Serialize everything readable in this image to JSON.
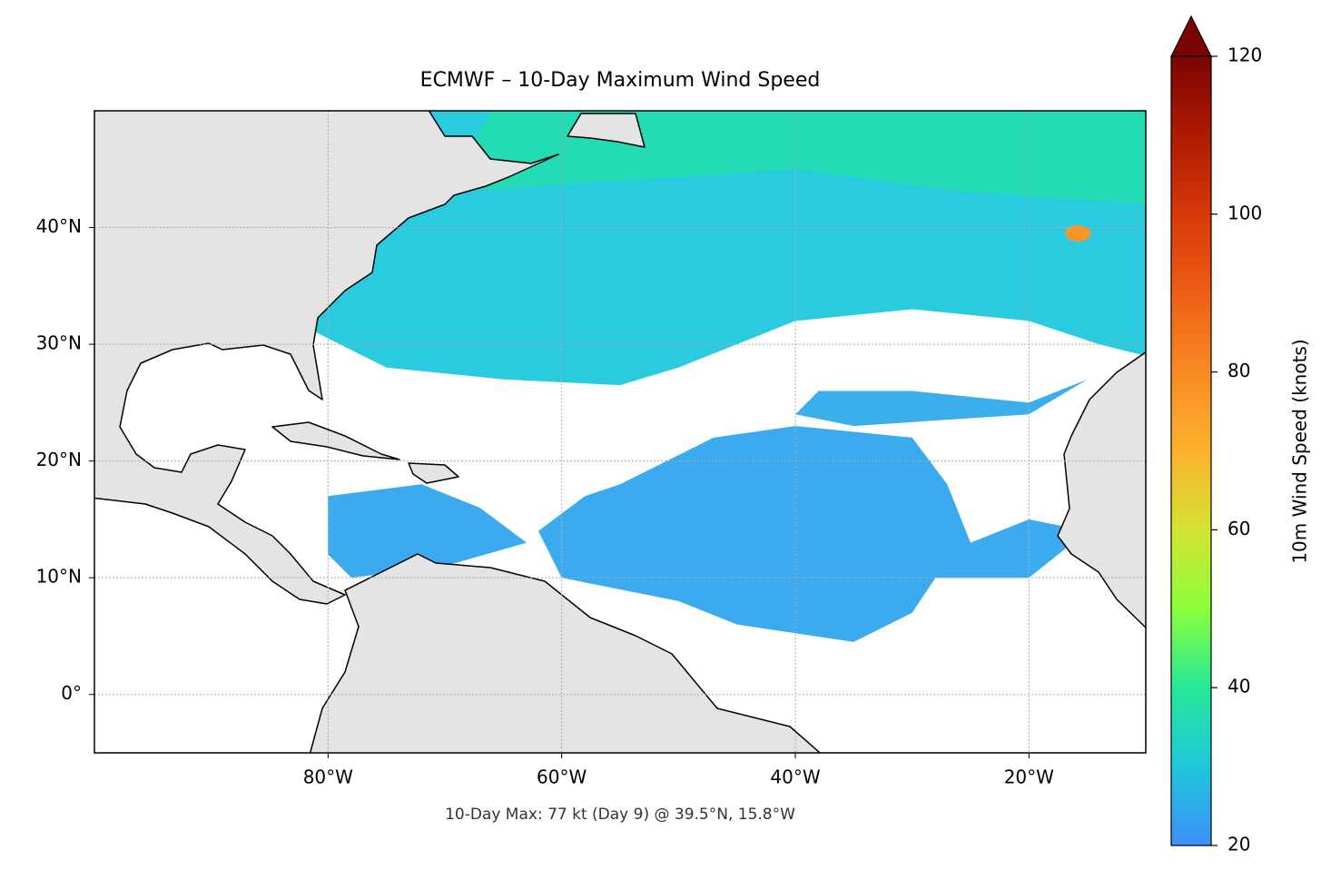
{
  "chart_data": {
    "type": "map",
    "title": "ECMWF – 10-Day Maximum Wind Speed",
    "footnote": "10-Day Max: 77 kt (Day 9) @ 39.5°N, 15.8°W",
    "colorbar_label": "10m Wind Speed (knots)",
    "xlim": [
      -100,
      -10
    ],
    "ylim": [
      -5,
      50
    ],
    "xticks": [
      {
        "value": -80,
        "label": "80°W"
      },
      {
        "value": -60,
        "label": "60°W"
      },
      {
        "value": -40,
        "label": "40°W"
      },
      {
        "value": -20,
        "label": "20°W"
      }
    ],
    "yticks": [
      {
        "value": 0,
        "label": "0°"
      },
      {
        "value": 10,
        "label": "10°N"
      },
      {
        "value": 20,
        "label": "20°N"
      },
      {
        "value": 30,
        "label": "30°N"
      },
      {
        "value": 40,
        "label": "40°N"
      }
    ],
    "grid": true,
    "clim": [
      20,
      120
    ],
    "cticks": [
      20,
      40,
      60,
      80,
      100,
      120
    ],
    "colormap": [
      "#3f8ef8",
      "#1fc8dc",
      "#26e896",
      "#8cff3c",
      "#d6e232",
      "#fcb22e",
      "#f98a24",
      "#ee5e16",
      "#d63808",
      "#ae1a02",
      "#7a0403"
    ],
    "wind_regions": [
      {
        "value": 30,
        "lonlat": [
          [
            -81,
            31
          ],
          [
            -75,
            28
          ],
          [
            -65,
            27
          ],
          [
            -55,
            26.5
          ],
          [
            -50,
            28
          ],
          [
            -45,
            30
          ],
          [
            -40,
            32
          ],
          [
            -30,
            33
          ],
          [
            -20,
            32
          ],
          [
            -14,
            30
          ],
          [
            -10,
            29
          ],
          [
            -10,
            50
          ],
          [
            -72,
            50
          ],
          [
            -81,
            40
          ]
        ]
      },
      {
        "value": 36,
        "lonlat": [
          [
            -70,
            43
          ],
          [
            -55,
            44
          ],
          [
            -40,
            45
          ],
          [
            -25,
            43
          ],
          [
            -10,
            42
          ],
          [
            -10,
            50
          ],
          [
            -66,
            50
          ]
        ]
      },
      {
        "value": 24,
        "lonlat": [
          [
            -55,
            18
          ],
          [
            -47,
            22
          ],
          [
            -40,
            23
          ],
          [
            -30,
            22
          ],
          [
            -27,
            18
          ],
          [
            -25,
            13
          ],
          [
            -20,
            15
          ],
          [
            -15,
            14
          ],
          [
            -20,
            10
          ],
          [
            -28,
            10
          ],
          [
            -30,
            7
          ],
          [
            -35,
            4.5
          ],
          [
            -45,
            6
          ],
          [
            -50,
            8
          ],
          [
            -60,
            10
          ],
          [
            -62,
            14
          ],
          [
            -58,
            17
          ]
        ]
      },
      {
        "value": 24,
        "lonlat": [
          [
            -80,
            17
          ],
          [
            -72,
            18
          ],
          [
            -67,
            16
          ],
          [
            -63,
            13
          ],
          [
            -70,
            11
          ],
          [
            -78,
            10
          ],
          [
            -80,
            12
          ]
        ]
      },
      {
        "value": 25,
        "lonlat": [
          [
            -38,
            26
          ],
          [
            -30,
            26
          ],
          [
            -20,
            25
          ],
          [
            -15,
            27
          ],
          [
            -20,
            24
          ],
          [
            -35,
            23
          ],
          [
            -40,
            24
          ]
        ]
      }
    ],
    "maximum": {
      "lat": 39.5,
      "lon": -15.8,
      "value": 77
    }
  }
}
